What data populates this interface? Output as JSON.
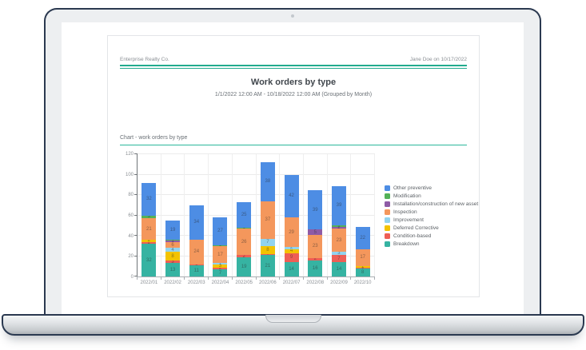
{
  "report": {
    "company": "Enterprise Realty Co.",
    "author_line": "Jane Doe on 10/17/2022",
    "title": "Work orders by type",
    "subtitle": "1/1/2022 12:00 AM - 10/18/2022 12:00 AM (Grouped by Month)",
    "section_title": "Chart - work orders by type"
  },
  "colors": {
    "accent_teal": "#22ab8e"
  },
  "chart_data": {
    "type": "bar",
    "stacked": true,
    "grid": true,
    "legend_position": "right",
    "ylim": [
      0,
      120
    ],
    "yticks": [
      0,
      20,
      40,
      60,
      80,
      100,
      120
    ],
    "categories": [
      "2022/01",
      "2022/02",
      "2022/03",
      "2022/04",
      "2022/05",
      "2022/06",
      "2022/07",
      "2022/08",
      "2022/09",
      "2022/10"
    ],
    "series": [
      {
        "name": "Breakdown",
        "color": "#36b3a2",
        "values": [
          32,
          13,
          11,
          7,
          19,
          21,
          14,
          16,
          14,
          8
        ]
      },
      {
        "name": "Condition-based",
        "color": "#ee5f55",
        "values": [
          2,
          3,
          1,
          2,
          2,
          1,
          9,
          2,
          7,
          1
        ]
      },
      {
        "name": "Deferred Corrective",
        "color": "#f3c300",
        "values": [
          2,
          8,
          0,
          3,
          0,
          8,
          4,
          0,
          0,
          1
        ]
      },
      {
        "name": "Improvement",
        "color": "#92d3ee",
        "values": [
          0,
          4,
          0,
          1,
          0,
          7,
          2,
          0,
          3,
          0
        ]
      },
      {
        "name": "Inspection",
        "color": "#f4975c",
        "values": [
          21,
          6,
          24,
          17,
          26,
          37,
          29,
          23,
          23,
          17
        ]
      },
      {
        "name": "Installation/construction of new asset",
        "color": "#8e5ba6",
        "values": [
          0,
          1,
          0,
          0,
          0,
          0,
          0,
          5,
          2,
          0
        ]
      },
      {
        "name": "Modification",
        "color": "#53b157",
        "values": [
          3,
          1,
          0,
          1,
          1,
          0,
          0,
          0,
          1,
          0
        ]
      },
      {
        "name": "Other preventive",
        "color": "#4d8de4",
        "values": [
          32,
          19,
          34,
          27,
          25,
          38,
          42,
          39,
          39,
          22
        ]
      }
    ]
  }
}
